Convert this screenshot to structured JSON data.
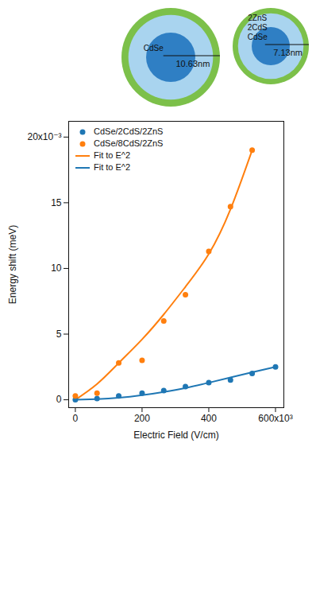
{
  "chart_data": {
    "type": "scatter",
    "x_label": "Electric Field (V/cm)",
    "y_label": "Energy shift (meV)",
    "xlim": [
      -20000,
      625000
    ],
    "ylim": [
      -0.0006,
      0.0212
    ],
    "xticks": [
      0,
      {
        "value": 200000,
        "label": "200"
      },
      {
        "value": 400000,
        "label": "400"
      },
      {
        "value": 600000,
        "label": "600x10³"
      }
    ],
    "yticks": [
      0,
      {
        "value": 0.005,
        "label": "5"
      },
      {
        "value": 0.01,
        "label": "10"
      },
      {
        "value": 0.015,
        "label": "15"
      },
      {
        "value": 0.02,
        "label": "20x10⁻³"
      }
    ],
    "legend": "top-left",
    "series": [
      {
        "name": "CdSe/2CdS/2ZnS",
        "type": "scatter",
        "marker": "circle",
        "color": "#1f77b4",
        "x": [
          0,
          65000,
          130000,
          200000,
          265000,
          330000,
          400000,
          465000,
          530000,
          600000
        ],
        "values": [
          0,
          0.0001,
          0.0003,
          0.0005,
          0.0007,
          0.001,
          0.0013,
          0.0015,
          0.002,
          0.0025
        ]
      },
      {
        "name": "CdSe/8CdS/2ZnS",
        "type": "scatter",
        "marker": "circle",
        "color": "#ff7f0e",
        "x": [
          0,
          65000,
          130000,
          200000,
          265000,
          330000,
          400000,
          465000,
          530000
        ],
        "values": [
          0.0003,
          0.0005,
          0.0028,
          0.003,
          0.006,
          0.008,
          0.0113,
          0.0147,
          0.019
        ]
      },
      {
        "name": "Fit to E^2",
        "type": "line",
        "line_style": "solid",
        "color": "#ff7f0e",
        "x": [
          0,
          65000,
          130000,
          200000,
          265000,
          330000,
          400000,
          465000,
          530000
        ],
        "values": [
          0,
          0.0012,
          0.0028,
          0.0046,
          0.0065,
          0.0086,
          0.0111,
          0.0145,
          0.019
        ]
      },
      {
        "name": "Fit to E^2",
        "type": "line",
        "line_style": "solid",
        "color": "#1f77b4",
        "x": [
          0,
          65000,
          130000,
          200000,
          265000,
          330000,
          400000,
          465000,
          530000,
          600000
        ],
        "values": [
          0,
          5e-05,
          0.00015,
          0.00035,
          0.0006,
          0.0009,
          0.0013,
          0.0017,
          0.0021,
          0.0025
        ]
      }
    ],
    "annotations": [
      {
        "texts": [
          "CdSe"
        ],
        "size_label": "10.63nm"
      },
      {
        "texts": [
          "2ZnS",
          "2CdS",
          "CdSe"
        ],
        "size_label": "7.13nm"
      }
    ]
  }
}
